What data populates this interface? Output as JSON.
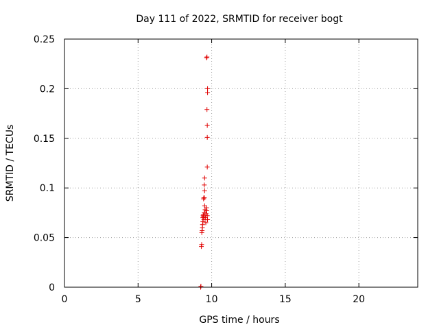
{
  "chart_data": {
    "type": "scatter",
    "title": "Day 111 of 2022, SRMTID for receiver bogt",
    "xlabel": "GPS time / hours",
    "ylabel": "SRMTID / TECUs",
    "xlim": [
      0,
      24
    ],
    "ylim": [
      0,
      0.25
    ],
    "xticks": [
      0,
      5,
      10,
      15,
      20
    ],
    "xtick_labels": [
      "0",
      "5",
      "10",
      "15",
      "20"
    ],
    "yticks": [
      0,
      0.05,
      0.1,
      0.15,
      0.2,
      0.25
    ],
    "ytick_labels": [
      "0",
      "0.05",
      "0.1",
      "0.15",
      "0.2",
      "0.25"
    ],
    "grid": true,
    "marker": "+",
    "color": "#e00000",
    "series": [
      {
        "points": [
          [
            9.25,
            0.0
          ],
          [
            9.27,
            0.001
          ],
          [
            9.3,
            0.041
          ],
          [
            9.32,
            0.043
          ],
          [
            9.33,
            0.055
          ],
          [
            9.35,
            0.057
          ],
          [
            9.37,
            0.06
          ],
          [
            9.38,
            0.063
          ],
          [
            9.4,
            0.066
          ],
          [
            9.4,
            0.07
          ],
          [
            9.42,
            0.072
          ],
          [
            9.43,
            0.073
          ],
          [
            9.45,
            0.071
          ],
          [
            9.47,
            0.068
          ],
          [
            9.5,
            0.075
          ],
          [
            9.45,
            0.089
          ],
          [
            9.47,
            0.09
          ],
          [
            9.5,
            0.09
          ],
          [
            9.52,
            0.082
          ],
          [
            9.55,
            0.078
          ],
          [
            9.57,
            0.07
          ],
          [
            9.6,
            0.065
          ],
          [
            9.62,
            0.074
          ],
          [
            9.65,
            0.08
          ],
          [
            9.67,
            0.077
          ],
          [
            9.7,
            0.072
          ],
          [
            9.72,
            0.068
          ],
          [
            9.52,
            0.097
          ],
          [
            9.5,
            0.103
          ],
          [
            9.52,
            0.11
          ],
          [
            9.7,
            0.121
          ],
          [
            9.7,
            0.151
          ],
          [
            9.7,
            0.163
          ],
          [
            9.68,
            0.179
          ],
          [
            9.72,
            0.196
          ],
          [
            9.72,
            0.2
          ],
          [
            9.65,
            0.231
          ],
          [
            9.68,
            0.232
          ]
        ]
      }
    ]
  }
}
